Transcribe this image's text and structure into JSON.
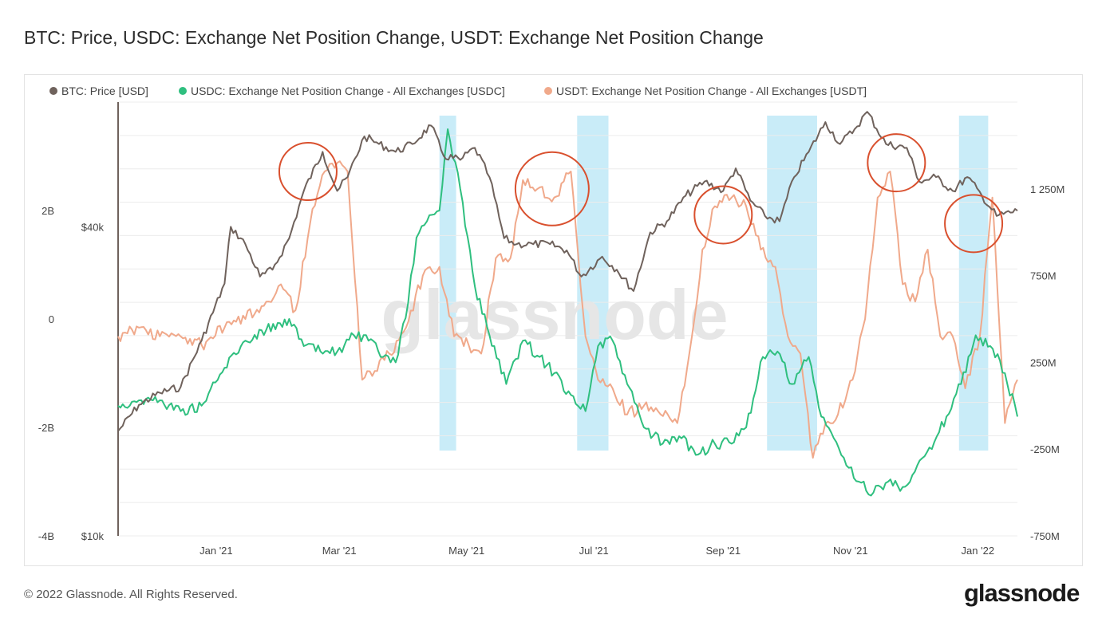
{
  "page": {
    "title": "BTC: Price, USDC: Exchange Net Position Change, USDT: Exchange Net Position Change",
    "copyright": "© 2022 Glassnode. All Rights Reserved.",
    "brand": "glassnode",
    "watermark": "glassnode"
  },
  "colors": {
    "btc": "#6f625c",
    "usdc": "#2fbf7f",
    "usdt": "#f0a98b",
    "highlight": "#bfe9f7",
    "circle": "#d9502e"
  },
  "chart_data": {
    "type": "line",
    "title": "BTC: Price, USDC: Exchange Net Position Change, USDT: Exchange Net Position Change",
    "x_ticks": [
      "Jan '21",
      "Mar '21",
      "May '21",
      "Jul '21",
      "Sep '21",
      "Nov '21",
      "Jan '22"
    ],
    "x_range": [
      "2020-11-15",
      "2022-01-20"
    ],
    "left_ticks_usdc": [
      "2B",
      "0",
      "-2B",
      "-4B"
    ],
    "left_ticks_btc": [
      "$40k",
      "$10k"
    ],
    "right_ticks_usdt": [
      "1 250M",
      "750M",
      "250M",
      "-250M",
      "-750M"
    ],
    "axes": {
      "usdc_ylim": [
        -4000000000,
        4000000000
      ],
      "btc_ylim": [
        10000,
        70000
      ],
      "btc_scale": "log",
      "usdt_ylim": [
        -750000000,
        1750000000
      ]
    },
    "grid": true,
    "legend_position": "top-left",
    "series": [
      {
        "name": "BTC: Price [USD]",
        "axis": "btc",
        "x": [
          "2020-11-15",
          "2020-11-25",
          "2020-12-05",
          "2020-12-15",
          "2020-12-25",
          "2021-01-05",
          "2021-01-08",
          "2021-01-15",
          "2021-01-22",
          "2021-01-28",
          "2021-02-05",
          "2021-02-12",
          "2021-02-21",
          "2021-02-28",
          "2021-03-05",
          "2021-03-13",
          "2021-03-20",
          "2021-03-28",
          "2021-04-05",
          "2021-04-14",
          "2021-04-20",
          "2021-04-28",
          "2021-05-05",
          "2021-05-12",
          "2021-05-19",
          "2021-05-25",
          "2021-06-02",
          "2021-06-10",
          "2021-06-18",
          "2021-06-25",
          "2021-07-05",
          "2021-07-12",
          "2021-07-20",
          "2021-07-28",
          "2021-08-05",
          "2021-08-14",
          "2021-08-23",
          "2021-09-01",
          "2021-09-07",
          "2021-09-14",
          "2021-09-21",
          "2021-09-28",
          "2021-10-05",
          "2021-10-12",
          "2021-10-20",
          "2021-10-27",
          "2021-11-03",
          "2021-11-09",
          "2021-11-18",
          "2021-11-28",
          "2021-12-04",
          "2021-12-12",
          "2021-12-20",
          "2021-12-27",
          "2022-01-03",
          "2022-01-10",
          "2022-01-20"
        ],
        "values": [
          16000,
          18000,
          19000,
          19500,
          24000,
          31000,
          40000,
          37000,
          32000,
          33000,
          38000,
          47000,
          56000,
          47000,
          50000,
          60000,
          58000,
          56000,
          58000,
          63000,
          55000,
          54000,
          57000,
          50000,
          38000,
          37000,
          37000,
          37000,
          36000,
          32000,
          35000,
          33000,
          30000,
          39000,
          41000,
          46000,
          49000,
          47000,
          52000,
          45000,
          42000,
          41000,
          50000,
          56000,
          64000,
          58000,
          62000,
          67000,
          58000,
          57000,
          49000,
          50000,
          47000,
          50000,
          46000,
          42000,
          43000
        ]
      },
      {
        "name": "USDC: Exchange Net Position Change - All Exchanges [USDC]",
        "axis": "usdc",
        "x": [
          "2020-11-15",
          "2020-11-25",
          "2020-12-05",
          "2020-12-15",
          "2020-12-25",
          "2021-01-05",
          "2021-01-15",
          "2021-01-25",
          "2021-02-05",
          "2021-02-12",
          "2021-02-20",
          "2021-02-28",
          "2021-03-08",
          "2021-03-15",
          "2021-03-22",
          "2021-03-28",
          "2021-04-03",
          "2021-04-07",
          "2021-04-12",
          "2021-04-18",
          "2021-04-22",
          "2021-04-28",
          "2021-05-05",
          "2021-05-12",
          "2021-05-20",
          "2021-05-28",
          "2021-06-05",
          "2021-06-12",
          "2021-06-20",
          "2021-06-27",
          "2021-07-03",
          "2021-07-10",
          "2021-07-17",
          "2021-07-25",
          "2021-08-03",
          "2021-08-12",
          "2021-08-20",
          "2021-08-28",
          "2021-09-05",
          "2021-09-12",
          "2021-09-20",
          "2021-09-27",
          "2021-10-04",
          "2021-10-12",
          "2021-10-18",
          "2021-10-24",
          "2021-10-30",
          "2021-11-05",
          "2021-11-12",
          "2021-11-19",
          "2021-11-26",
          "2021-12-03",
          "2021-12-10",
          "2021-12-17",
          "2021-12-24",
          "2021-12-31",
          "2022-01-07",
          "2022-01-14",
          "2022-01-20"
        ],
        "values": [
          -1600000000,
          -1500000000,
          -1500000000,
          -1700000000,
          -1600000000,
          -900000000,
          -400000000,
          -200000000,
          0,
          -500000000,
          -600000000,
          -600000000,
          -300000000,
          -400000000,
          -700000000,
          -800000000,
          300000000,
          1500000000,
          1800000000,
          2000000000,
          3500000000,
          2400000000,
          600000000,
          -300000000,
          -1200000000,
          -400000000,
          -700000000,
          -1000000000,
          -1400000000,
          -1700000000,
          -500000000,
          -400000000,
          -1200000000,
          -2000000000,
          -2300000000,
          -2200000000,
          -2500000000,
          -2300000000,
          -2300000000,
          -2000000000,
          -700000000,
          -600000000,
          -1200000000,
          -700000000,
          -1800000000,
          -2200000000,
          -2700000000,
          -3000000000,
          -3200000000,
          -3000000000,
          -3100000000,
          -2700000000,
          -2400000000,
          -1800000000,
          -1200000000,
          -300000000,
          -500000000,
          -1000000000,
          -1800000000
        ]
      },
      {
        "name": "USDT: Exchange Net Position Change - All Exchanges [USDT]",
        "axis": "usdt",
        "x": [
          "2020-11-15",
          "2020-11-25",
          "2020-12-05",
          "2020-12-15",
          "2020-12-25",
          "2021-01-05",
          "2021-01-15",
          "2021-01-25",
          "2021-02-01",
          "2021-02-08",
          "2021-02-15",
          "2021-02-22",
          "2021-02-28",
          "2021-03-05",
          "2021-03-12",
          "2021-03-18",
          "2021-03-25",
          "2021-04-02",
          "2021-04-10",
          "2021-04-18",
          "2021-04-25",
          "2021-05-02",
          "2021-05-08",
          "2021-05-15",
          "2021-05-22",
          "2021-05-28",
          "2021-06-04",
          "2021-06-12",
          "2021-06-20",
          "2021-06-27",
          "2021-07-03",
          "2021-07-10",
          "2021-07-17",
          "2021-07-25",
          "2021-08-02",
          "2021-08-10",
          "2021-08-17",
          "2021-08-22",
          "2021-08-28",
          "2021-09-05",
          "2021-09-12",
          "2021-09-19",
          "2021-09-26",
          "2021-10-02",
          "2021-10-08",
          "2021-10-14",
          "2021-10-20",
          "2021-10-26",
          "2021-11-02",
          "2021-11-08",
          "2021-11-14",
          "2021-11-20",
          "2021-11-26",
          "2021-12-02",
          "2021-12-08",
          "2021-12-14",
          "2021-12-20",
          "2021-12-26",
          "2022-01-02",
          "2022-01-08",
          "2022-01-14",
          "2022-01-20"
        ],
        "values": [
          400000000,
          450000000,
          400000000,
          400000000,
          350000000,
          450000000,
          500000000,
          600000000,
          700000000,
          550000000,
          1050000000,
          1350000000,
          1400000000,
          1350000000,
          150000000,
          200000000,
          300000000,
          450000000,
          750000000,
          800000000,
          400000000,
          350000000,
          300000000,
          850000000,
          850000000,
          1300000000,
          1250000000,
          1200000000,
          1350000000,
          400000000,
          150000000,
          100000000,
          -50000000,
          0,
          -50000000,
          -100000000,
          400000000,
          900000000,
          1150000000,
          1200000000,
          1150000000,
          900000000,
          800000000,
          400000000,
          300000000,
          -300000000,
          -100000000,
          -50000000,
          150000000,
          500000000,
          1200000000,
          1350000000,
          700000000,
          600000000,
          900000000,
          400000000,
          400000000,
          100000000,
          400000000,
          1200000000,
          -100000000,
          150000000
        ]
      }
    ],
    "highlight_ranges": [
      [
        "2021-04-18",
        "2021-04-26"
      ],
      [
        "2021-06-23",
        "2021-07-08"
      ],
      [
        "2021-09-22",
        "2021-10-16"
      ],
      [
        "2021-12-23",
        "2022-01-06"
      ]
    ],
    "circles": [
      {
        "date": "2021-02-14",
        "value": 1350000000
      },
      {
        "date": "2021-06-11",
        "value": 1250000000
      },
      {
        "date": "2021-09-01",
        "value": 1100000000
      },
      {
        "date": "2021-11-23",
        "value": 1400000000
      },
      {
        "date": "2021-12-30",
        "value": 1050000000
      }
    ]
  }
}
